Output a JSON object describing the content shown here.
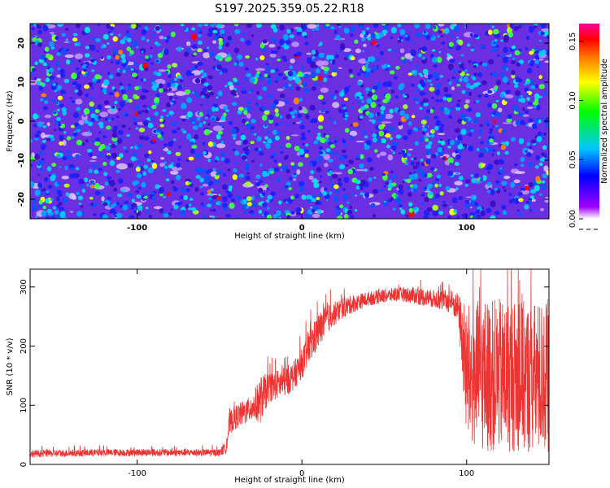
{
  "title": "S197.2025.359.05.22.R18",
  "chart_data": [
    {
      "type": "heatmap",
      "xlabel": "Height of straight line (km)",
      "ylabel": "Frequency (Hz)",
      "xlim": [
        -165,
        150
      ],
      "ylim": [
        -25,
        25
      ],
      "x_ticks": [
        -100,
        0,
        100
      ],
      "y_ticks": [
        -20,
        -10,
        0,
        10,
        20
      ],
      "colorbar": {
        "label": "Normalized spectral amplitude",
        "range": [
          0,
          0.165
        ],
        "ticks": [
          "0.00",
          "0.05",
          "0.10",
          "0.15"
        ],
        "colormap": [
          "#ffffff",
          "#a000ff",
          "#0000ff",
          "#00c8ff",
          "#00ff00",
          "#ffff00",
          "#ff8000",
          "#ff0000",
          "#ff00a0"
        ]
      }
    },
    {
      "type": "line",
      "xlabel": "Height of straight line (km)",
      "ylabel": "SNR (10 * v/v)",
      "xlim": [
        -165,
        150
      ],
      "ylim": [
        0,
        330
      ],
      "x_ticks": [
        -100,
        0,
        100
      ],
      "y_ticks": [
        0,
        100,
        200,
        300
      ],
      "color": "#ee3333",
      "series": [
        {
          "x": [
            -165,
            -120,
            -80,
            -50,
            -46,
            -44,
            -40,
            -30,
            -25,
            -20,
            -15,
            -10,
            -5,
            0,
            5,
            10,
            15,
            20,
            25,
            30,
            40,
            50,
            60,
            70,
            80,
            90,
            95,
            100,
            110,
            120,
            130,
            140,
            150
          ],
          "mean": [
            18,
            20,
            20,
            20,
            28,
            70,
            80,
            95,
            110,
            130,
            135,
            140,
            150,
            170,
            200,
            225,
            245,
            255,
            265,
            270,
            280,
            285,
            288,
            285,
            280,
            275,
            265,
            150,
            150,
            150,
            150,
            145,
            150
          ],
          "noise": [
            6,
            6,
            6,
            6,
            10,
            20,
            20,
            22,
            40,
            25,
            25,
            25,
            25,
            25,
            30,
            30,
            25,
            20,
            18,
            15,
            12,
            12,
            12,
            15,
            15,
            20,
            25,
            120,
            130,
            130,
            130,
            130,
            130
          ],
          "min": [
            0,
            0,
            0,
            0,
            0,
            0,
            0,
            0,
            0,
            0,
            0,
            0,
            0,
            0,
            0,
            0,
            0,
            0,
            0,
            0,
            0,
            0,
            0,
            0,
            0,
            0,
            0,
            5,
            5,
            5,
            5,
            5,
            5
          ],
          "max": [
            60,
            60,
            60,
            60,
            80,
            140,
            150,
            170,
            230,
            210,
            215,
            220,
            230,
            250,
            280,
            300,
            310,
            320,
            325,
            325,
            325,
            325,
            325,
            325,
            325,
            325,
            325,
            330,
            330,
            330,
            330,
            330,
            330
          ]
        }
      ]
    }
  ]
}
